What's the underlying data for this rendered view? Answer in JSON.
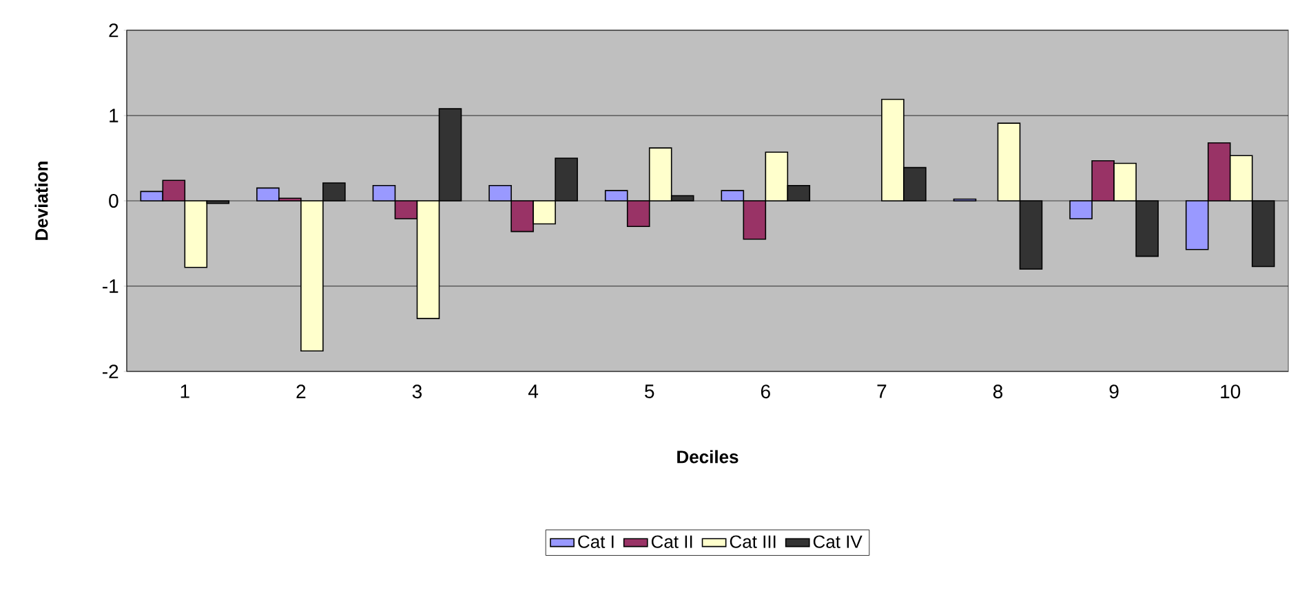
{
  "chart_data": {
    "type": "bar",
    "xlabel": "Deciles",
    "ylabel": "Deviation",
    "categories": [
      "1",
      "2",
      "3",
      "4",
      "5",
      "6",
      "7",
      "8",
      "9",
      "10"
    ],
    "series": [
      {
        "name": "Cat I",
        "color": "#9999ff",
        "values": [
          0.11,
          0.15,
          0.18,
          0.18,
          0.12,
          0.12,
          null,
          0.02,
          -0.21,
          -0.57
        ]
      },
      {
        "name": "Cat II",
        "color": "#993366",
        "values": [
          0.24,
          0.03,
          -0.21,
          -0.36,
          -0.3,
          -0.45,
          null,
          null,
          0.47,
          0.68
        ]
      },
      {
        "name": "Cat III",
        "color": "#ffffcc",
        "values": [
          -0.78,
          -1.76,
          -1.38,
          -0.27,
          0.62,
          0.57,
          1.19,
          0.91,
          0.44,
          0.53
        ]
      },
      {
        "name": "Cat IV",
        "color": "#333333",
        "values": [
          -0.03,
          0.21,
          1.08,
          0.5,
          0.06,
          0.18,
          0.39,
          -0.8,
          -0.65,
          -0.77
        ]
      }
    ],
    "ylim": [
      -2,
      2
    ],
    "yticks": [
      -2,
      -1,
      0,
      1,
      2
    ],
    "grid": "y",
    "legend": "bottom"
  }
}
